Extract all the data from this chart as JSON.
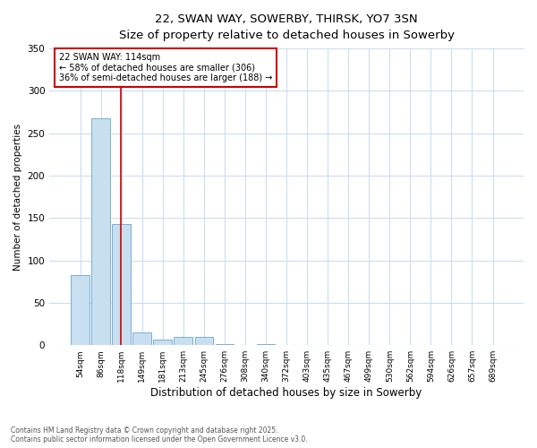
{
  "title_line1": "22, SWAN WAY, SOWERBY, THIRSK, YO7 3SN",
  "title_line2": "Size of property relative to detached houses in Sowerby",
  "xlabel": "Distribution of detached houses by size in Sowerby",
  "ylabel": "Number of detached properties",
  "bar_labels": [
    "54sqm",
    "86sqm",
    "118sqm",
    "149sqm",
    "181sqm",
    "213sqm",
    "245sqm",
    "276sqm",
    "308sqm",
    "340sqm",
    "372sqm",
    "403sqm",
    "435sqm",
    "467sqm",
    "499sqm",
    "530sqm",
    "562sqm",
    "594sqm",
    "626sqm",
    "657sqm",
    "689sqm"
  ],
  "bar_values": [
    83,
    268,
    143,
    15,
    7,
    10,
    10,
    1,
    0,
    1,
    0,
    0,
    0,
    0,
    0,
    0,
    0,
    0,
    0,
    0,
    0
  ],
  "bar_color": "#c8dff0",
  "bar_edge_color": "#7aafd4",
  "ylim": [
    0,
    350
  ],
  "yticks": [
    0,
    50,
    100,
    150,
    200,
    250,
    300,
    350
  ],
  "annotation_text_line1": "22 SWAN WAY: 114sqm",
  "annotation_text_line2": "← 58% of detached houses are smaller (306)",
  "annotation_text_line3": "36% of semi-detached houses are larger (188) →",
  "red_line_color": "#cc0000",
  "annotation_box_edgecolor": "#cc0000",
  "annotation_box_facecolor": "#ffffff",
  "footer_line1": "Contains HM Land Registry data © Crown copyright and database right 2025.",
  "footer_line2": "Contains public sector information licensed under the Open Government Licence v3.0.",
  "background_color": "#ffffff",
  "grid_color": "#ccddf0",
  "figsize": [
    6.0,
    5.0
  ],
  "dpi": 100
}
